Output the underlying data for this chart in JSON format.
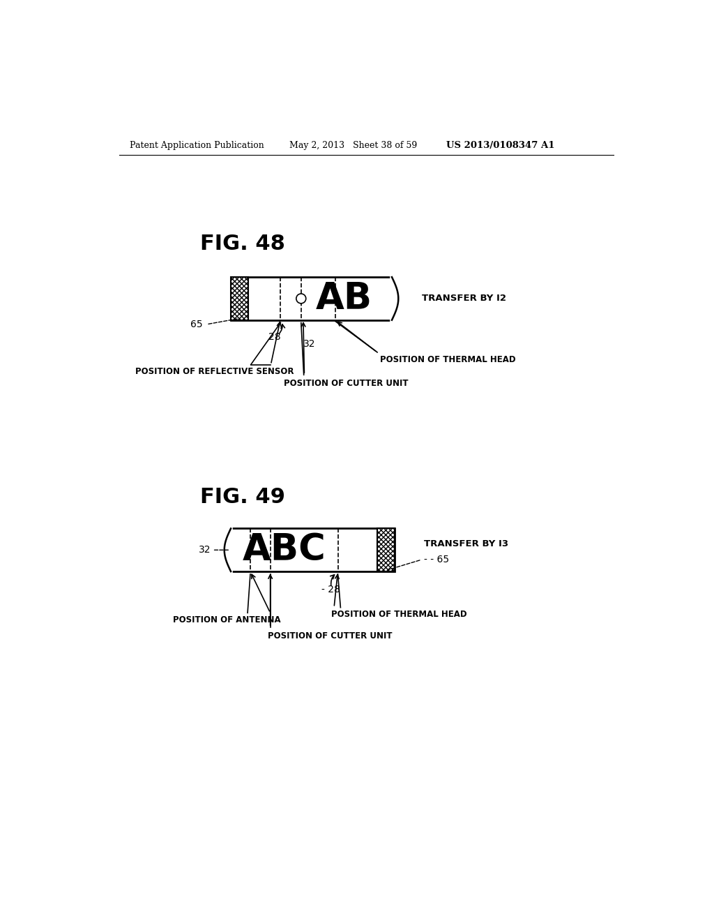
{
  "bg_color": "#ffffff",
  "header_left": "Patent Application Publication",
  "header_mid": "May 2, 2013   Sheet 38 of 59",
  "header_right": "US 2013/0108347 A1",
  "fig48_title": "FIG. 48",
  "fig49_title": "FIG. 49",
  "fig48_label_text": "AB",
  "fig49_label_text": "ABC",
  "transfer_by_i2": "TRANSFER BY I2",
  "transfer_by_i3": "TRANSFER BY I3",
  "pos_reflective": "POSITION OF REFLECTIVE SENSOR",
  "pos_cutter1": "POSITION OF CUTTER UNIT",
  "pos_thermal1": "POSITION OF THERMAL HEAD",
  "pos_antenna": "POSITION OF ANTENNA",
  "pos_cutter2": "POSITION OF CUTTER UNIT",
  "pos_thermal2": "POSITION OF THERMAL HEAD",
  "label_65": "65",
  "label_28": "28",
  "label_32": "32"
}
